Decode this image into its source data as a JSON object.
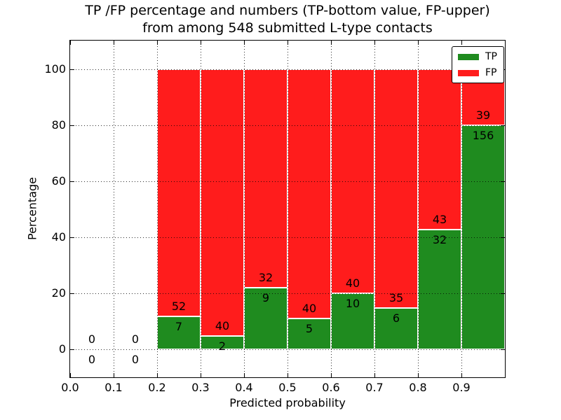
{
  "title": {
    "line1": "TP /FP percentage and numbers (TP-bottom value, FP-upper)",
    "line2": "from among 548 submitted L-type contacts"
  },
  "colors": {
    "tp": "#1f8b1f",
    "fp": "#ff1c1c",
    "bar_edge": "#ffffff",
    "grid": "#000000",
    "background": "#ffffff",
    "text": "#000000"
  },
  "chart_data": {
    "type": "bar",
    "stacked": true,
    "title": "TP /FP percentage and numbers (TP-bottom value, FP-upper) from among 548 submitted L-type contacts",
    "xlabel": "Predicted probability",
    "ylabel": "Percentage",
    "xlim": [
      0.0,
      1.0
    ],
    "ylim": [
      -10,
      110.25
    ],
    "xticks": [
      0.0,
      0.1,
      0.2,
      0.3,
      0.4,
      0.5,
      0.6,
      0.7,
      0.8,
      0.9
    ],
    "xtick_labels": [
      "0.0",
      "0.1",
      "0.2",
      "0.3",
      "0.4",
      "0.5",
      "0.6",
      "0.7",
      "0.8",
      "0.9"
    ],
    "yticks": [
      0,
      20,
      40,
      60,
      80,
      100
    ],
    "ytick_labels": [
      "0",
      "20",
      "40",
      "60",
      "80",
      "100"
    ],
    "grid": true,
    "total_contacts": 548,
    "legend": {
      "position": "upper right",
      "entries": [
        {
          "label": "TP",
          "color": "#1f8b1f"
        },
        {
          "label": "FP",
          "color": "#ff1c1c"
        }
      ]
    },
    "bins": [
      {
        "x_start": 0.0,
        "x_end": 0.1,
        "tp_count": 0,
        "fp_count": 0,
        "tp_pct": 0,
        "fp_pct": 0
      },
      {
        "x_start": 0.1,
        "x_end": 0.2,
        "tp_count": 0,
        "fp_count": 0,
        "tp_pct": 0,
        "fp_pct": 0
      },
      {
        "x_start": 0.2,
        "x_end": 0.3,
        "tp_count": 7,
        "fp_count": 52,
        "tp_pct": 11.86,
        "fp_pct": 88.14
      },
      {
        "x_start": 0.3,
        "x_end": 0.4,
        "tp_count": 2,
        "fp_count": 40,
        "tp_pct": 4.76,
        "fp_pct": 95.24
      },
      {
        "x_start": 0.4,
        "x_end": 0.5,
        "tp_count": 9,
        "fp_count": 32,
        "tp_pct": 21.95,
        "fp_pct": 78.05
      },
      {
        "x_start": 0.5,
        "x_end": 0.6,
        "tp_count": 5,
        "fp_count": 40,
        "tp_pct": 11.11,
        "fp_pct": 88.89
      },
      {
        "x_start": 0.6,
        "x_end": 0.7,
        "tp_count": 10,
        "fp_count": 40,
        "tp_pct": 20.0,
        "fp_pct": 80.0
      },
      {
        "x_start": 0.7,
        "x_end": 0.8,
        "tp_count": 6,
        "fp_count": 35,
        "tp_pct": 14.63,
        "fp_pct": 85.37
      },
      {
        "x_start": 0.8,
        "x_end": 0.9,
        "tp_count": 32,
        "fp_count": 43,
        "tp_pct": 42.67,
        "fp_pct": 57.33
      },
      {
        "x_start": 0.9,
        "x_end": 1.0,
        "tp_count": 156,
        "fp_count": 39,
        "tp_pct": 80.0,
        "fp_pct": 20.0
      }
    ]
  }
}
